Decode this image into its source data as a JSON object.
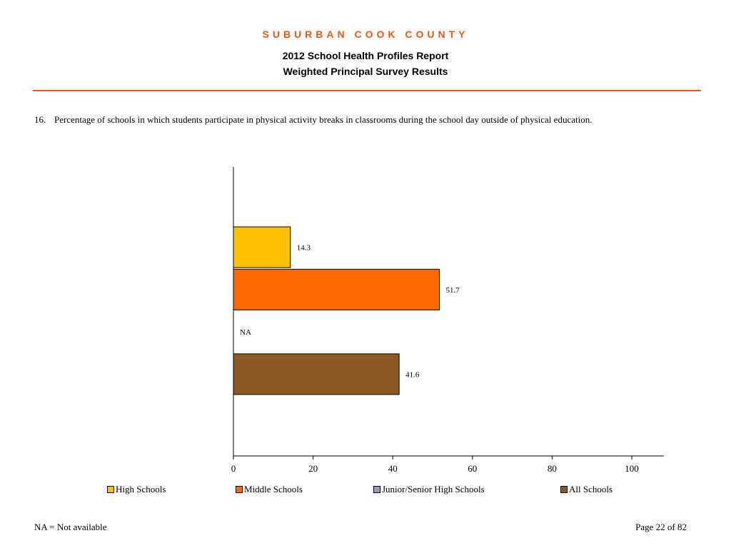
{
  "header": {
    "county": "SUBURBAN COOK COUNTY",
    "title": "2012 School Health Profiles Report",
    "subtitle": "Weighted Principal Survey Results"
  },
  "question": {
    "number": "16.",
    "text": "Percentage of schools in which students participate in physical activity breaks in classrooms during the school day outside of physical education."
  },
  "chart_data": {
    "type": "bar",
    "orientation": "horizontal",
    "categories": [
      "High Schools",
      "Middle Schools",
      "Junior/Senior High Schools",
      "All Schools"
    ],
    "values": [
      14.3,
      51.7,
      null,
      41.6
    ],
    "value_labels": [
      "14.3",
      "51.7",
      "NA",
      "41.6"
    ],
    "colors": [
      "#ffc000",
      "#ff6a00",
      "#a394c6",
      "#8b5a22"
    ],
    "xlim": [
      0,
      100
    ],
    "xticks": [
      0,
      20,
      40,
      60,
      80,
      100
    ],
    "legend_position": "bottom"
  },
  "footer": {
    "note": "NA = Not available",
    "page": "Page 22 of 82"
  }
}
